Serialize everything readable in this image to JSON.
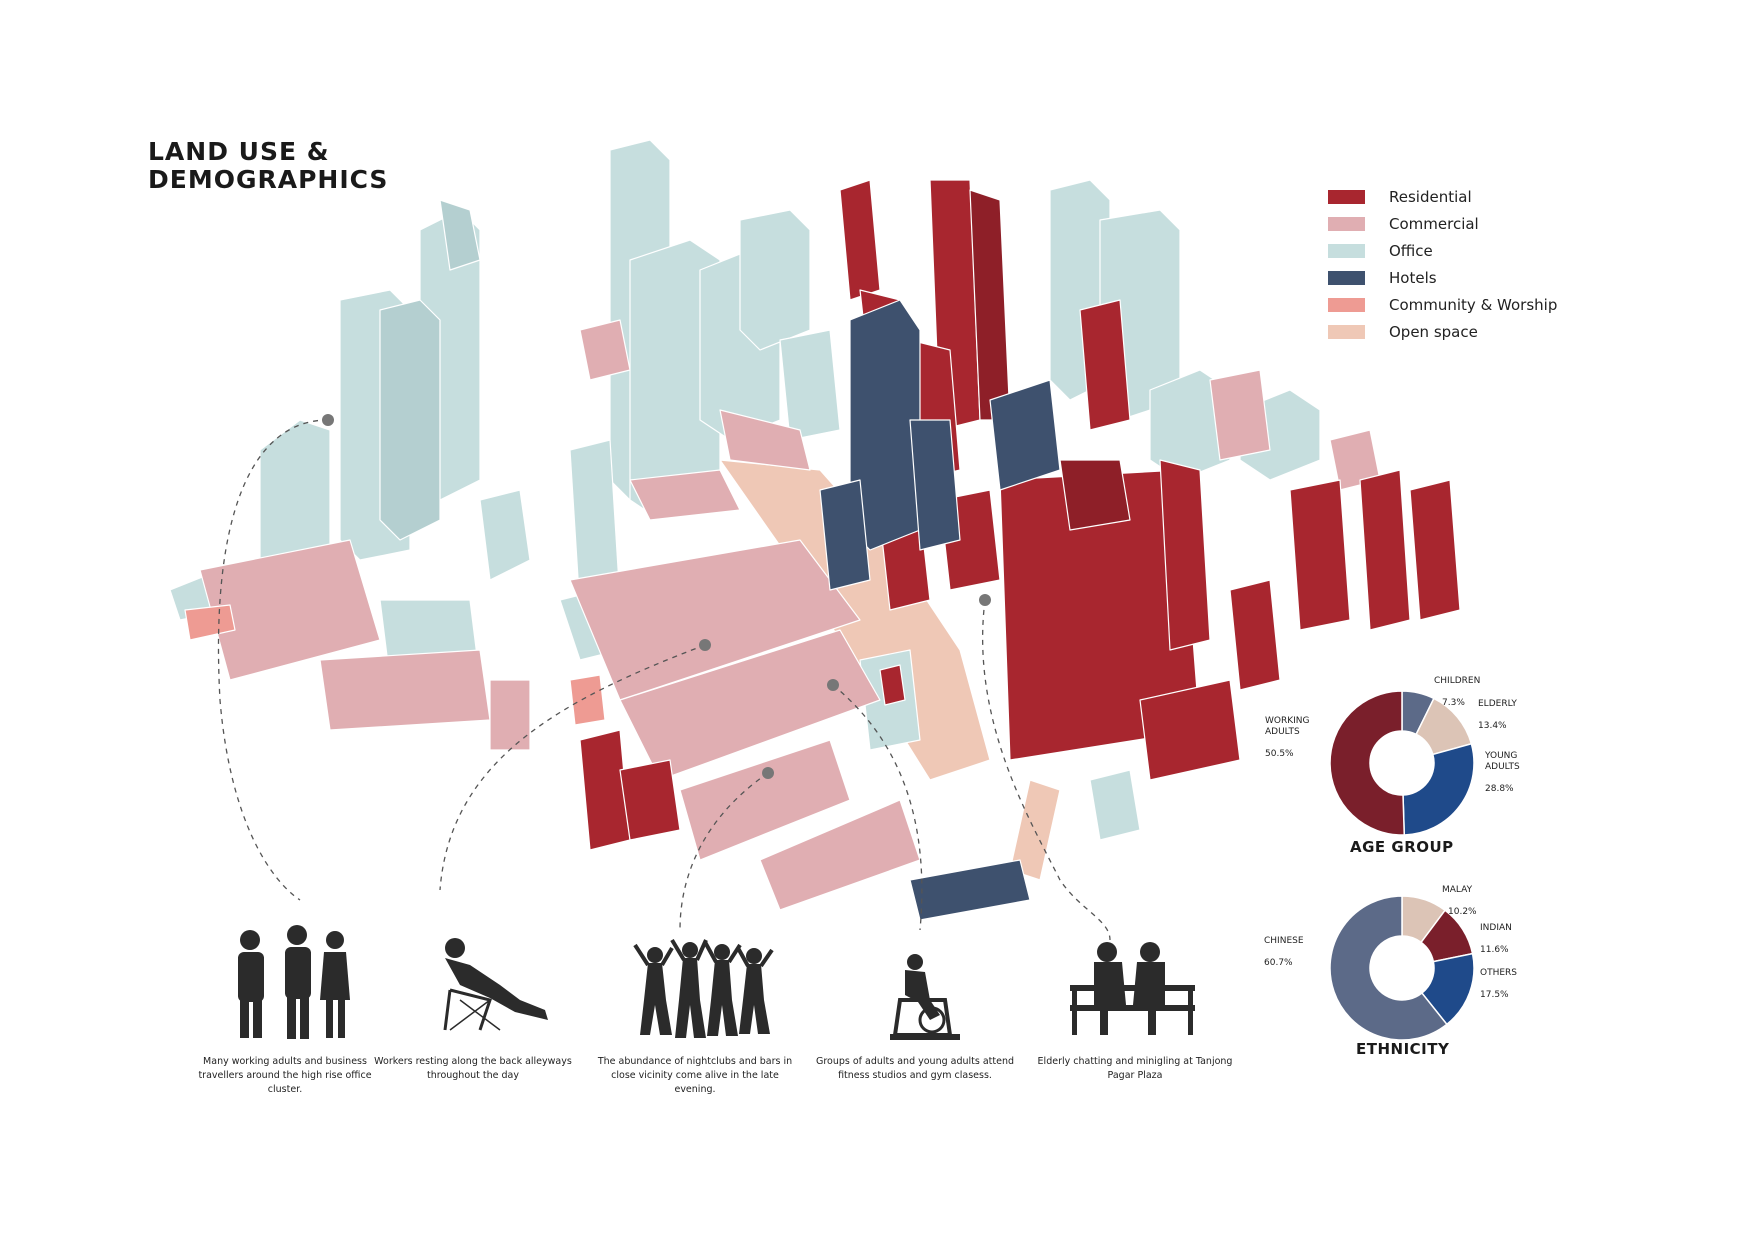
{
  "title": "LAND USE &\nDEMOGRAPHICS",
  "legend": [
    {
      "label": "Residential",
      "color": "#a8262f"
    },
    {
      "label": "Commercial",
      "color": "#e0aeb2"
    },
    {
      "label": "Office",
      "color": "#c6dede"
    },
    {
      "label": "Hotels",
      "color": "#3e516e"
    },
    {
      "label": "Community & Worship",
      "color": "#ee9b93"
    },
    {
      "label": "Open space",
      "color": "#efc8b6"
    }
  ],
  "captions": [
    "Many working adults  and business travellers around the high rise office cluster.",
    "Workers resting along the back alleyways throughout the day",
    "The abundance of nightclubs and bars in close vicinity come alive in the late evening.",
    "Groups of adults and young adults attend fitness studios and gym clasess.",
    "Elderly chatting and minigling at Tanjong Pagar Plaza"
  ],
  "icons": [
    "business-people-icon",
    "resting-worker-icon",
    "dancing-crowd-icon",
    "gym-cyclist-icon",
    "elderly-bench-icon"
  ],
  "chart_data": [
    {
      "type": "pie",
      "title": "AGE GROUP",
      "slices": [
        {
          "label": "CHILDREN",
          "value": 7.3,
          "value_text": "7.3%",
          "color": "#5c6a88"
        },
        {
          "label": "ELDERLY",
          "value": 13.4,
          "value_text": "13.4%",
          "color": "#dcc4b6"
        },
        {
          "label": "YOUNG\nADULTS",
          "value": 28.8,
          "value_text": "28.8%",
          "color": "#1f4a8a"
        },
        {
          "label": "WORKING\nADULTS",
          "value": 50.5,
          "value_text": "50.5%",
          "color": "#7a1f2b"
        }
      ]
    },
    {
      "type": "pie",
      "title": "ETHNICITY",
      "slices": [
        {
          "label": "MALAY",
          "value": 10.2,
          "value_text": "10.2%",
          "color": "#dcc4b6"
        },
        {
          "label": "INDIAN",
          "value": 11.6,
          "value_text": "11.6%",
          "color": "#7a1f2b"
        },
        {
          "label": "OTHERS",
          "value": 17.5,
          "value_text": "17.5%",
          "color": "#1f4a8a"
        },
        {
          "label": "CHINESE",
          "value": 60.7,
          "value_text": "60.7%",
          "color": "#5c6a88"
        }
      ]
    }
  ]
}
